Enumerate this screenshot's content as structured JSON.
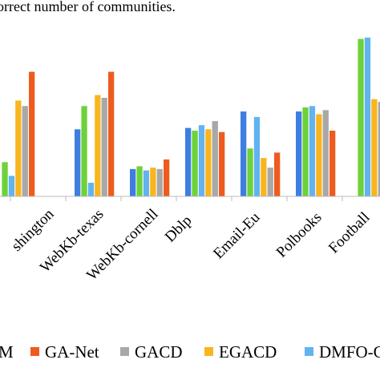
{
  "caption": "orrect number of communities.",
  "chart_data": {
    "type": "bar",
    "categories": [
      "shington",
      "WebKb-texas",
      "WebKb-cornell",
      "Dblp",
      "Email-Eu",
      "Polbooks",
      "Football"
    ],
    "series": [
      {
        "name": "M",
        "color": "#3d7ee0",
        "values": [
          null,
          0.49,
          0.2,
          0.5,
          0.62,
          0.62,
          null
        ]
      },
      {
        "name": "",
        "color": "#6dd23a",
        "values": [
          0.25,
          0.66,
          0.22,
          0.48,
          0.35,
          0.65,
          1.15
        ]
      },
      {
        "name": "DMFO-C",
        "color": "#62b3f0",
        "values": [
          0.15,
          0.1,
          0.19,
          0.52,
          0.58,
          0.66,
          1.16
        ]
      },
      {
        "name": "EGACD",
        "color": "#f9b51e",
        "values": [
          0.7,
          0.74,
          0.21,
          0.49,
          0.28,
          0.6,
          0.71
        ]
      },
      {
        "name": "GACD",
        "color": "#a8a8a8",
        "values": [
          0.66,
          0.72,
          0.2,
          0.55,
          0.21,
          0.63,
          0.69
        ]
      },
      {
        "name": "GA-Net",
        "color": "#ee5b1f",
        "values": [
          0.91,
          0.91,
          0.27,
          0.47,
          0.32,
          0.48,
          null
        ]
      }
    ],
    "ylim": [
      0,
      1.2
    ],
    "grid": false,
    "legend_position": "bottom",
    "legend_entries": [
      "M",
      "GA-Net",
      "GACD",
      "EGACD",
      "DMFO-C"
    ],
    "title": "",
    "xlabel": "",
    "ylabel": ""
  }
}
